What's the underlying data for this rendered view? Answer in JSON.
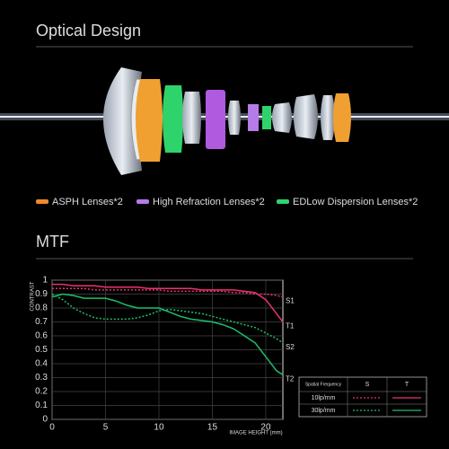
{
  "sections": {
    "optical_title": "Optical Design",
    "mtf_title": "MTF"
  },
  "legend": [
    {
      "label": "ASPH Lenses*2",
      "color": "#f08a2a"
    },
    {
      "label": "High Refraction Lenses*2",
      "color": "#b57be8"
    },
    {
      "label": "EDLow Dispersion Lenses*2",
      "color": "#2fd36b"
    }
  ],
  "chart_data": {
    "type": "line",
    "ylabel": "CONTRAST",
    "xlabel": "IMAGE HEIGHT (mm)",
    "x": [
      0,
      1,
      2,
      3,
      4,
      5,
      6,
      7,
      8,
      9,
      10,
      11,
      12,
      13,
      14,
      15,
      16,
      17,
      18,
      19,
      20,
      21,
      21.6
    ],
    "series": [
      {
        "name": "S1",
        "color": "#e8336f",
        "dash": true,
        "values": [
          0.94,
          0.94,
          0.94,
          0.94,
          0.93,
          0.93,
          0.93,
          0.93,
          0.93,
          0.93,
          0.93,
          0.92,
          0.92,
          0.92,
          0.92,
          0.92,
          0.92,
          0.91,
          0.91,
          0.9,
          0.9,
          0.89,
          0.88
        ]
      },
      {
        "name": "T1",
        "color": "#e8336f",
        "dash": false,
        "values": [
          0.97,
          0.97,
          0.96,
          0.96,
          0.96,
          0.95,
          0.95,
          0.95,
          0.95,
          0.94,
          0.94,
          0.94,
          0.94,
          0.94,
          0.93,
          0.93,
          0.93,
          0.93,
          0.92,
          0.91,
          0.86,
          0.76,
          0.7
        ]
      },
      {
        "name": "S2",
        "color": "#1fbf6a",
        "dash": true,
        "values": [
          0.9,
          0.86,
          0.8,
          0.76,
          0.73,
          0.72,
          0.72,
          0.72,
          0.73,
          0.75,
          0.78,
          0.79,
          0.78,
          0.77,
          0.76,
          0.74,
          0.72,
          0.7,
          0.68,
          0.66,
          0.62,
          0.58,
          0.55
        ]
      },
      {
        "name": "T2",
        "color": "#1fbf6a",
        "dash": false,
        "values": [
          0.88,
          0.9,
          0.89,
          0.87,
          0.87,
          0.87,
          0.85,
          0.82,
          0.8,
          0.8,
          0.8,
          0.77,
          0.74,
          0.72,
          0.71,
          0.7,
          0.68,
          0.65,
          0.6,
          0.55,
          0.45,
          0.35,
          0.32
        ]
      }
    ],
    "xlim": [
      0,
      21.6
    ],
    "xticks": [
      0,
      5,
      10,
      15,
      20
    ],
    "ylim": [
      0,
      1
    ],
    "yticks": [
      0,
      0.1,
      0.2,
      0.3,
      0.4,
      0.5,
      0.6,
      0.7,
      0.8,
      0.9,
      1
    ],
    "grid": true
  },
  "mtf_table": {
    "headers": [
      "Spatial Frequency",
      "S",
      "T"
    ],
    "rows": [
      "10lp/mm",
      "30lp/mm"
    ]
  }
}
